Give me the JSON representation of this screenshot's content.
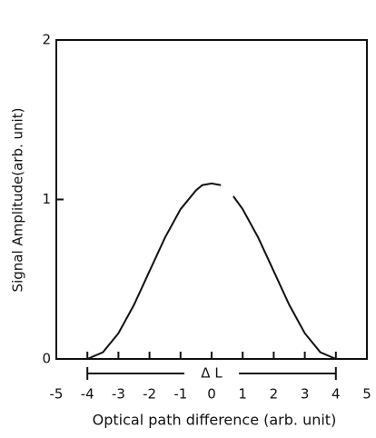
{
  "chart_data": {
    "type": "line",
    "x": [
      -4,
      -3.5,
      -3,
      -2.5,
      -2,
      -1.5,
      -1,
      -0.5,
      -0.3,
      0,
      0.3,
      0.5,
      0.7,
      1,
      1.5,
      2,
      2.5,
      3,
      3.5,
      4
    ],
    "series": [
      {
        "color": "#111111",
        "values": [
          0,
          0.042,
          0.161,
          0.339,
          0.55,
          0.761,
          0.939,
          1.058,
          1.09,
          1.1,
          1.09,
          null,
          1.02,
          0.939,
          0.761,
          0.55,
          0.339,
          0.161,
          0.042,
          0
        ]
      }
    ],
    "xlim": [
      -5,
      5
    ],
    "xticks": [
      -5,
      -4,
      -3,
      -2,
      -1,
      0,
      1,
      2,
      3,
      4,
      5
    ],
    "ylim": [
      0,
      2
    ],
    "yticks": [
      0,
      1,
      2
    ],
    "xlabel": "Optical path difference (arb. unit)",
    "ylabel": "Signal Amplitude(arb. unit)",
    "annotation": "Δ L"
  }
}
